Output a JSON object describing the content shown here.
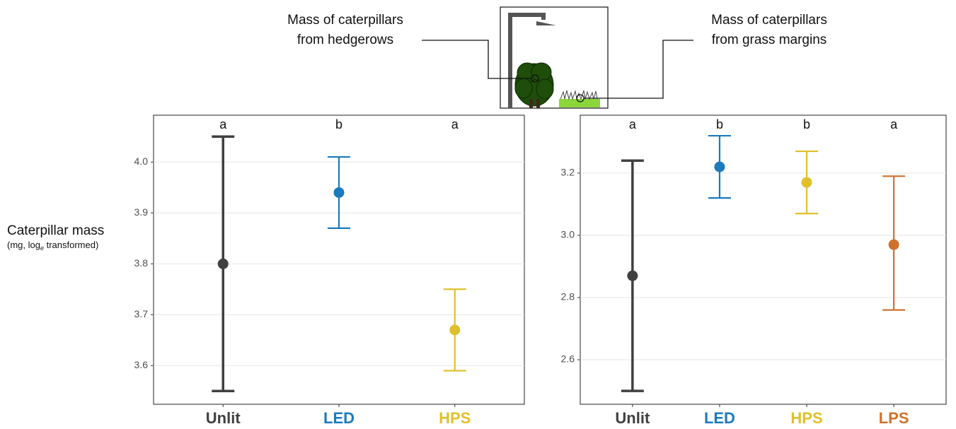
{
  "chart_data": [
    {
      "type": "errorbar",
      "ylabel": "Caterpillar mass",
      "ylabel_note": [
        "(mg, log",
        "e",
        " transformed)"
      ],
      "annotation": [
        "Mass of caterpillars",
        "from hedgerows"
      ],
      "categories": [
        "Unlit",
        "LED",
        "HPS"
      ],
      "values": [
        3.8,
        3.94,
        3.67
      ],
      "lower": [
        3.55,
        3.87,
        3.59
      ],
      "upper": [
        4.05,
        4.01,
        3.75
      ],
      "letters": [
        "a",
        "b",
        "a"
      ],
      "colors": [
        "#404040",
        "#1b7bbd",
        "#e0c02a"
      ],
      "ylim": [
        3.524,
        4.092
      ],
      "yticks": [
        3.6,
        3.7,
        3.8,
        3.9,
        {
          "value": 4.0,
          "label": "4.0"
        }
      ],
      "grid": true
    },
    {
      "type": "errorbar",
      "annotation": [
        "Mass of caterpillars",
        "from grass margins"
      ],
      "categories": [
        "Unlit",
        "LED",
        "HPS",
        "LPS"
      ],
      "values": [
        2.87,
        3.22,
        3.17,
        2.97
      ],
      "lower": [
        2.5,
        3.12,
        3.07,
        2.76
      ],
      "upper": [
        3.24,
        3.32,
        3.27,
        3.19
      ],
      "letters": [
        "a",
        "b",
        "b",
        "a"
      ],
      "colors": [
        "#404040",
        "#1b7bbd",
        "#e0c02a",
        "#d0712b"
      ],
      "ylim": [
        2.457,
        3.386
      ],
      "yticks": [
        2.6,
        2.8,
        {
          "value": 3.0,
          "label": "3.0"
        },
        3.2
      ],
      "grid": true
    }
  ]
}
